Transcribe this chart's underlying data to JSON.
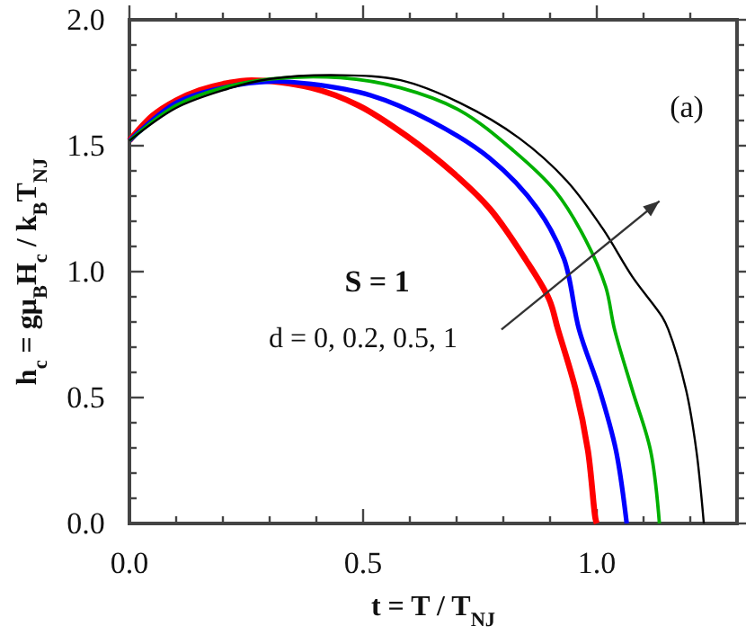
{
  "chart_data": {
    "type": "line",
    "xlabel": "t = T / T$_{NJ}$",
    "ylabel": "h$_{c}$ = gμ$_{B}$H$_{c}$ / k$_{B}$T$_{NJ}$",
    "annotations": [
      "(a)",
      "S = 1",
      "d = 0, 0.2, 0.5, 1"
    ],
    "xlim": [
      0,
      1.3
    ],
    "ylim": [
      0,
      2.0
    ],
    "xticks": [
      {
        "value": 0,
        "label": "0.0"
      },
      {
        "value": 0.1,
        "label": null
      },
      {
        "value": 0.2,
        "label": null
      },
      {
        "value": 0.3,
        "label": null
      },
      {
        "value": 0.4,
        "label": null
      },
      {
        "value": 0.5,
        "label": "0.5"
      },
      {
        "value": 0.6,
        "label": null
      },
      {
        "value": 0.7,
        "label": null
      },
      {
        "value": 0.8,
        "label": null
      },
      {
        "value": 0.9,
        "label": null
      },
      {
        "value": 1.0,
        "label": "1.0"
      },
      {
        "value": 1.1,
        "label": null
      },
      {
        "value": 1.2,
        "label": null
      }
    ],
    "yticks": [
      {
        "value": 0,
        "label": "0.0"
      },
      {
        "value": 0.1,
        "label": null
      },
      {
        "value": 0.2,
        "label": null
      },
      {
        "value": 0.3,
        "label": null
      },
      {
        "value": 0.4,
        "label": null
      },
      {
        "value": 0.5,
        "label": "0.5"
      },
      {
        "value": 0.6,
        "label": null
      },
      {
        "value": 0.7,
        "label": null
      },
      {
        "value": 0.8,
        "label": null
      },
      {
        "value": 0.9,
        "label": null
      },
      {
        "value": 1.0,
        "label": "1.0"
      },
      {
        "value": 1.1,
        "label": null
      },
      {
        "value": 1.2,
        "label": null
      },
      {
        "value": 1.3,
        "label": null
      },
      {
        "value": 1.4,
        "label": null
      },
      {
        "value": 1.5,
        "label": "1.5"
      },
      {
        "value": 1.6,
        "label": null
      },
      {
        "value": 1.7,
        "label": null
      },
      {
        "value": 1.8,
        "label": null
      },
      {
        "value": 1.9,
        "label": null
      },
      {
        "value": 2.0,
        "label": "2.0"
      }
    ],
    "grid": false,
    "marker": "none",
    "line_style": "solid",
    "series": [
      {
        "color": "#ff0000",
        "x": [
          0,
          0.05,
          0.1,
          0.15,
          0.2,
          0.261,
          0.389,
          0.49,
          0.592,
          0.694,
          0.771,
          0.847,
          0.898,
          0.917,
          0.955,
          0.981,
          0.997,
          1.0
        ],
        "values": [
          1.52,
          1.62,
          1.68,
          1.72,
          1.745,
          1.76,
          1.73,
          1.66,
          1.54,
          1.39,
          1.25,
          1.05,
          0.89,
          0.77,
          0.53,
          0.29,
          0.02,
          0
        ]
      },
      {
        "color": "#0000ff",
        "x": [
          0,
          0.1,
          0.2,
          0.3,
          0.389,
          0.516,
          0.643,
          0.771,
          0.873,
          0.93,
          0.962,
          1.006,
          1.041,
          1.064
        ],
        "values": [
          1.52,
          1.67,
          1.73,
          1.755,
          1.745,
          1.7,
          1.6,
          1.45,
          1.25,
          1.05,
          0.77,
          0.53,
          0.29,
          0
        ]
      },
      {
        "color": "#00b000",
        "x": [
          0,
          0.1,
          0.2,
          0.3,
          0.452,
          0.58,
          0.707,
          0.822,
          0.911,
          0.975,
          1.019,
          1.038,
          1.076,
          1.115,
          1.134
        ],
        "values": [
          1.52,
          1.66,
          1.73,
          1.765,
          1.77,
          1.73,
          1.64,
          1.48,
          1.32,
          1.13,
          0.94,
          0.77,
          0.53,
          0.29,
          0
        ]
      },
      {
        "color": "#000000",
        "x": [
          0,
          0.1,
          0.2,
          0.3,
          0.452,
          0.58,
          0.707,
          0.834,
          0.936,
          1.013,
          1.076,
          1.14,
          1.153,
          1.191,
          1.213,
          1.229
        ],
        "values": [
          1.52,
          1.65,
          1.72,
          1.765,
          1.78,
          1.76,
          1.67,
          1.53,
          1.36,
          1.17,
          0.98,
          0.82,
          0.77,
          0.53,
          0.29,
          0
        ]
      }
    ]
  }
}
